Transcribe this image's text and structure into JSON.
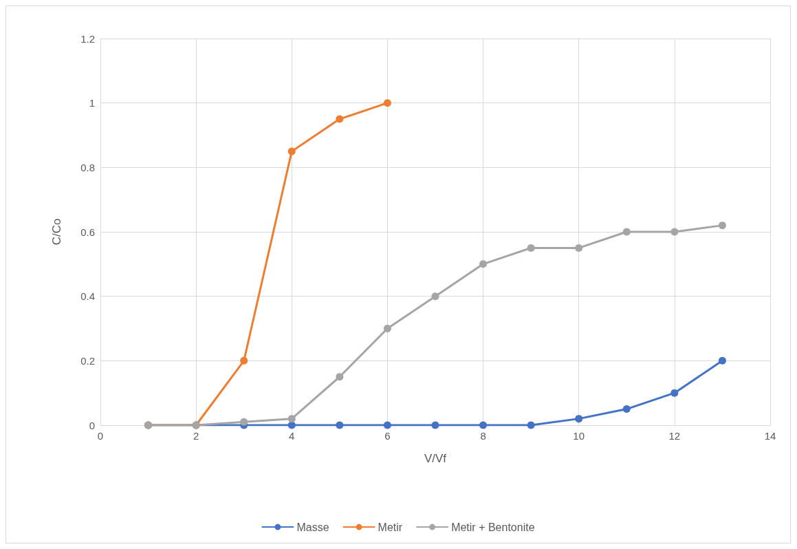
{
  "chart_data": {
    "type": "line",
    "xlabel": "V/Vf",
    "ylabel": "C/Co",
    "xlim": [
      0,
      14
    ],
    "xticks": [
      0,
      2,
      4,
      6,
      8,
      10,
      12,
      14
    ],
    "ylim": [
      0,
      1.2
    ],
    "yticks": [
      0,
      0.2,
      0.4,
      0.6,
      0.8,
      1,
      1.2
    ],
    "grid": true,
    "legend": "bottom",
    "marker": "circle",
    "line_style": "solid",
    "series": [
      {
        "name": "Masse",
        "color": "#4472c4",
        "x": [
          1,
          2,
          3,
          4,
          5,
          6,
          7,
          8,
          9,
          10,
          11,
          12,
          13
        ],
        "values": [
          0,
          0,
          0,
          0,
          0,
          0,
          0,
          0,
          0,
          0.02,
          0.05,
          0.1,
          0.2
        ]
      },
      {
        "name": "Metir",
        "color": "#ed7d31",
        "x": [
          1,
          2,
          3,
          4,
          5,
          6
        ],
        "values": [
          0,
          0,
          0.2,
          0.85,
          0.95,
          1
        ]
      },
      {
        "name": "Metir + Bentonite",
        "color": "#a5a5a5",
        "x": [
          1,
          2,
          3,
          4,
          5,
          6,
          7,
          8,
          9,
          10,
          11,
          12,
          13
        ],
        "values": [
          0,
          0,
          0.01,
          0.02,
          0.15,
          0.3,
          0.4,
          0.5,
          0.55,
          0.55,
          0.6,
          0.6,
          0.62
        ]
      }
    ]
  }
}
